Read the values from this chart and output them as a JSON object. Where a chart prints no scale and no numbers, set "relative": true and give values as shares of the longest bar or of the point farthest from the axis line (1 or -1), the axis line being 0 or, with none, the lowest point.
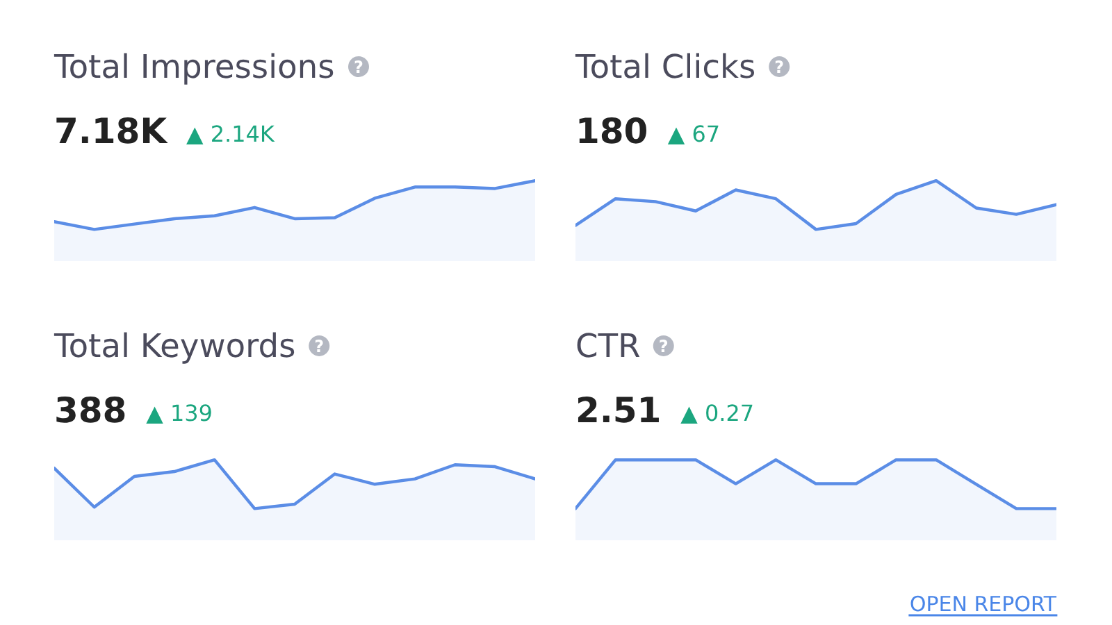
{
  "chart_data": [
    {
      "type": "area",
      "title": "Total Impressions",
      "annotations": [
        "7.18K",
        "▲ 2.14K"
      ],
      "relative": true,
      "categories": [
        null,
        null,
        null,
        null,
        null,
        null,
        null,
        null,
        null,
        null,
        null,
        null,
        null
      ],
      "series": [
        {
          "color": "#5b8de6",
          "values": [
            0.16,
            0,
            0.11,
            0.22,
            0.28,
            0.45,
            0.22,
            0.24,
            0.64,
            0.87,
            0.87,
            0.84,
            1
          ]
        }
      ]
    },
    {
      "type": "area",
      "title": "Total Clicks",
      "annotations": [
        "180",
        "▲ 67"
      ],
      "relative": true,
      "categories": [
        null,
        null,
        null,
        null,
        null,
        null,
        null,
        null,
        null,
        null,
        null,
        null,
        null
      ],
      "series": [
        {
          "color": "#5b8de6",
          "values": [
            0.08,
            0.63,
            0.57,
            0.38,
            0.81,
            0.63,
            0,
            0.12,
            0.72,
            1,
            0.44,
            0.31,
            0.51
          ]
        }
      ]
    },
    {
      "type": "area",
      "title": "Total Keywords",
      "annotations": [
        "388",
        "▲ 139"
      ],
      "relative": true,
      "categories": [
        null,
        null,
        null,
        null,
        null,
        null,
        null,
        null,
        null,
        null,
        null,
        null,
        null
      ],
      "series": [
        {
          "color": "#5b8de6",
          "values": [
            0.83,
            0.03,
            0.66,
            0.76,
            1,
            0,
            0.09,
            0.71,
            0.5,
            0.61,
            0.9,
            0.86,
            0.61
          ]
        }
      ]
    },
    {
      "type": "area",
      "title": "CTR",
      "annotations": [
        "2.51",
        "▲ 0.27",
        "OPEN REPORT"
      ],
      "relative": true,
      "categories": [
        null,
        null,
        null,
        null,
        null,
        null,
        null,
        null,
        null,
        null,
        null,
        null,
        null
      ],
      "series": [
        {
          "color": "#5b8de6",
          "values": [
            0,
            1,
            1,
            1,
            0.51,
            1,
            0.51,
            0.51,
            1,
            1,
            0.5,
            0,
            0
          ]
        }
      ]
    }
  ]
}
